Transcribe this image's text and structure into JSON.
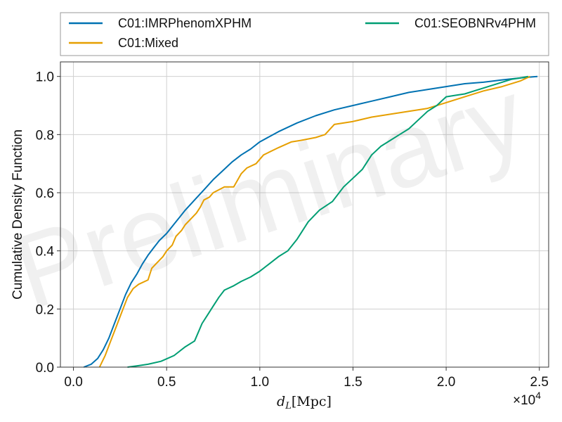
{
  "chart_data": {
    "type": "line",
    "ylabel": "Cumulative Density Function",
    "xlabel": "d_L [Mpc]",
    "x_multiplier_label": "×10",
    "x_multiplier_exp": "4",
    "watermark": "Preliminary",
    "xlim": [
      -700,
      25500
    ],
    "ylim": [
      0,
      1.05
    ],
    "xticks": [
      0,
      5000,
      10000,
      15000,
      20000,
      25000
    ],
    "xtick_labels": [
      "0.0",
      "0.5",
      "1.0",
      "1.5",
      "2.0",
      "2.5"
    ],
    "yticks": [
      0,
      0.2,
      0.4,
      0.6,
      0.8,
      1.0
    ],
    "ytick_labels": [
      "0.0",
      "0.2",
      "0.4",
      "0.6",
      "0.8",
      "1.0"
    ],
    "grid": true,
    "legend_position": "top-outside",
    "series": [
      {
        "name": "C01:IMRPhenomXPHM",
        "color": "#0072b2",
        "x": [
          550,
          950,
          1300,
          1600,
          1900,
          2200,
          2500,
          2800,
          3100,
          3400,
          3700,
          4000,
          4300,
          4600,
          5000,
          5500,
          6000,
          6500,
          7000,
          7500,
          8000,
          8500,
          9000,
          9500,
          10000,
          11000,
          12000,
          13000,
          14000,
          15000,
          16000,
          17000,
          18000,
          19000,
          20000,
          21000,
          22000,
          23000,
          24000,
          24900
        ],
        "y": [
          0,
          0.01,
          0.03,
          0.06,
          0.1,
          0.15,
          0.2,
          0.25,
          0.29,
          0.32,
          0.355,
          0.385,
          0.41,
          0.435,
          0.46,
          0.5,
          0.54,
          0.575,
          0.61,
          0.645,
          0.675,
          0.705,
          0.73,
          0.75,
          0.775,
          0.81,
          0.84,
          0.865,
          0.885,
          0.9,
          0.915,
          0.93,
          0.945,
          0.955,
          0.965,
          0.975,
          0.98,
          0.988,
          0.995,
          1.0
        ]
      },
      {
        "name": "C01:Mixed",
        "color": "#e69f00",
        "x": [
          1400,
          1700,
          2000,
          2300,
          2600,
          2900,
          3200,
          3500,
          4000,
          4200,
          4500,
          4800,
          5000,
          5300,
          5500,
          5800,
          6000,
          6300,
          6600,
          6800,
          7000,
          7300,
          7500,
          7800,
          8100,
          8600,
          9000,
          9300,
          9800,
          10200,
          11000,
          11700,
          12200,
          13000,
          13500,
          14000,
          15000,
          16000,
          17000,
          18000,
          19000,
          20000,
          21000,
          22000,
          23000,
          24000,
          24500
        ],
        "y": [
          0,
          0.04,
          0.09,
          0.14,
          0.19,
          0.24,
          0.27,
          0.285,
          0.3,
          0.34,
          0.36,
          0.38,
          0.4,
          0.42,
          0.45,
          0.47,
          0.49,
          0.51,
          0.53,
          0.55,
          0.575,
          0.585,
          0.6,
          0.61,
          0.62,
          0.62,
          0.665,
          0.685,
          0.7,
          0.73,
          0.755,
          0.775,
          0.78,
          0.79,
          0.8,
          0.835,
          0.845,
          0.86,
          0.87,
          0.88,
          0.89,
          0.91,
          0.93,
          0.95,
          0.965,
          0.985,
          1.0
        ]
      },
      {
        "name": "C01:SEOBNRv4PHM",
        "color": "#009e73",
        "x": [
          2900,
          3500,
          4000,
          4700,
          5400,
          6000,
          6500,
          6900,
          7200,
          7500,
          7800,
          8100,
          8600,
          9000,
          9500,
          10000,
          10500,
          11000,
          11500,
          12000,
          12600,
          13200,
          13900,
          14500,
          15000,
          15500,
          16000,
          16500,
          17000,
          17500,
          18000,
          18500,
          19000,
          19500,
          20000,
          20500,
          21000,
          21500,
          22000,
          22500,
          23000,
          23500,
          24000,
          24400
        ],
        "y": [
          0,
          0.005,
          0.01,
          0.02,
          0.04,
          0.07,
          0.09,
          0.15,
          0.18,
          0.21,
          0.24,
          0.265,
          0.28,
          0.295,
          0.31,
          0.33,
          0.355,
          0.38,
          0.4,
          0.44,
          0.5,
          0.54,
          0.57,
          0.62,
          0.65,
          0.68,
          0.73,
          0.76,
          0.78,
          0.8,
          0.82,
          0.85,
          0.88,
          0.9,
          0.93,
          0.935,
          0.94,
          0.95,
          0.96,
          0.97,
          0.98,
          0.99,
          0.995,
          1.0
        ]
      }
    ]
  }
}
